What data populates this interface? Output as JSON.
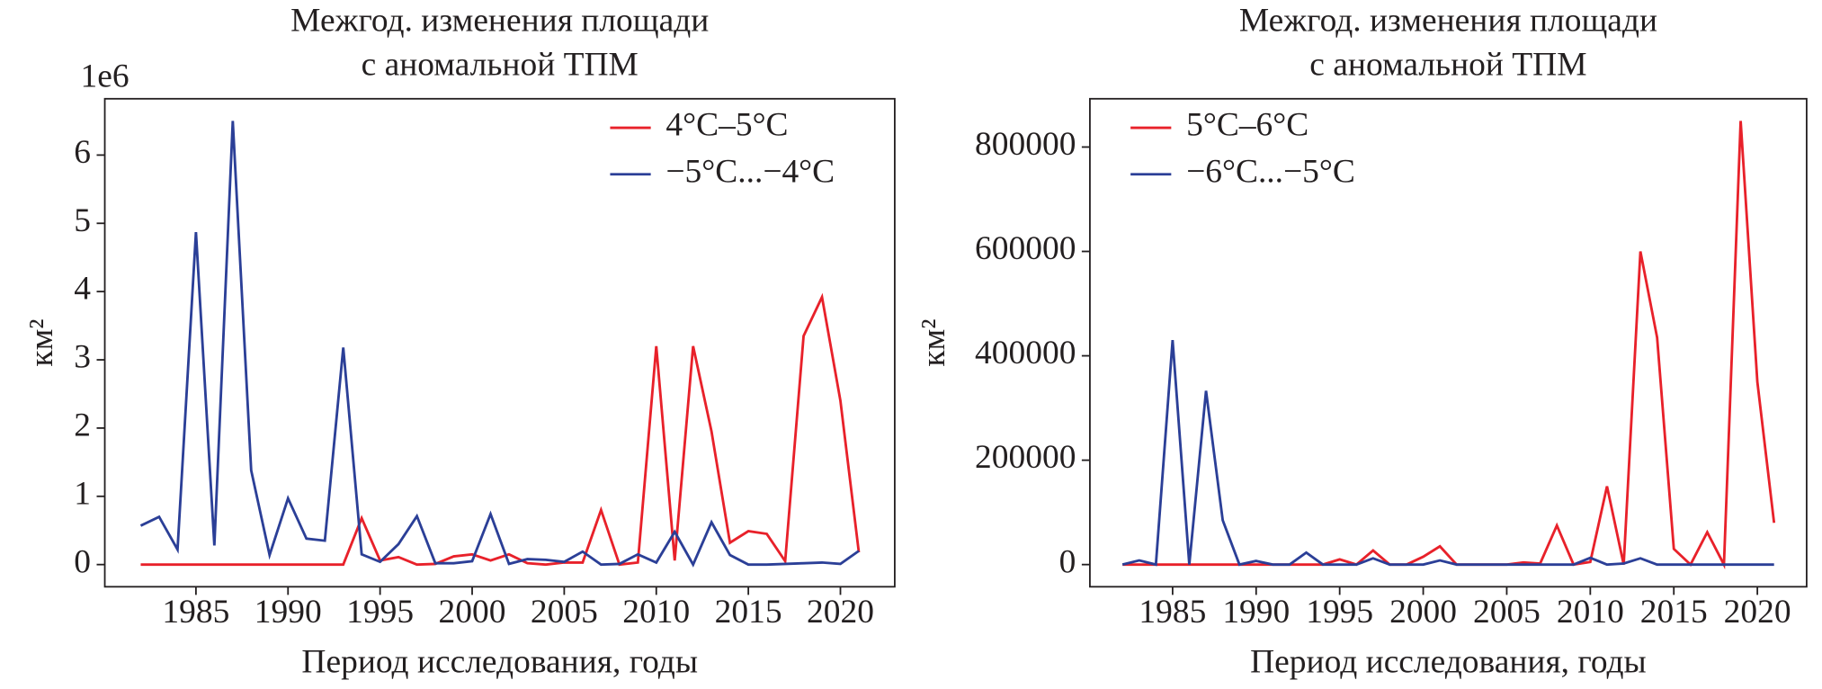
{
  "chart_data": [
    {
      "type": "line",
      "title": [
        "Межгод. изменения площади",
        "с аномальной ТПМ"
      ],
      "xlabel": "Период исследования, годы",
      "ylabel": "км²",
      "offset_text": "1e6",
      "x": [
        1982,
        1983,
        1984,
        1985,
        1986,
        1987,
        1988,
        1989,
        1990,
        1991,
        1992,
        1993,
        1994,
        1995,
        1996,
        1997,
        1998,
        1999,
        2000,
        2001,
        2002,
        2003,
        2004,
        2005,
        2006,
        2007,
        2008,
        2009,
        2010,
        2011,
        2012,
        2013,
        2014,
        2015,
        2016,
        2017,
        2018,
        2019,
        2020,
        2021
      ],
      "series": [
        {
          "name": "4°C–5°C",
          "color": "#e8212a",
          "values": [
            0,
            0,
            0,
            0,
            0,
            0,
            0,
            0,
            0,
            0,
            0,
            0,
            0.68,
            0.06,
            0.11,
            0,
            0.01,
            0.12,
            0.15,
            0.06,
            0.15,
            0.02,
            0,
            0.03,
            0.03,
            0.8,
            0,
            0.03,
            3.2,
            0.06,
            3.2,
            1.95,
            0.32,
            0.49,
            0.45,
            0.05,
            3.35,
            3.92,
            2.4,
            0.18
          ]
        },
        {
          "name": "−5°C...−4°C",
          "color": "#2b3f97",
          "values": [
            0.57,
            0.7,
            0.22,
            4.87,
            0.28,
            6.5,
            1.38,
            0.14,
            0.97,
            0.38,
            0.35,
            3.18,
            0.15,
            0.04,
            0.3,
            0.71,
            0.02,
            0.02,
            0.05,
            0.74,
            0.01,
            0.08,
            0.07,
            0.04,
            0.19,
            0,
            0.01,
            0.15,
            0.03,
            0.48,
            0,
            0.62,
            0.14,
            0,
            0,
            0.01,
            0.02,
            0.03,
            0.01,
            0.2
          ]
        }
      ],
      "xlim": [
        1980.05,
        2022.95
      ],
      "xticks": [
        1985,
        1990,
        1995,
        2000,
        2005,
        2010,
        2015,
        2020
      ],
      "ylim": [
        -0.325,
        6.825
      ],
      "yticks": [
        0,
        1,
        2,
        3,
        4,
        5,
        6
      ],
      "legend": "upper right"
    },
    {
      "type": "line",
      "title": [
        "Межгод. изменения площади",
        "с аномальной ТПМ"
      ],
      "xlabel": "Период исследования, годы",
      "ylabel": "км²",
      "x": [
        1982,
        1983,
        1984,
        1985,
        1986,
        1987,
        1988,
        1989,
        1990,
        1991,
        1992,
        1993,
        1994,
        1995,
        1996,
        1997,
        1998,
        1999,
        2000,
        2001,
        2002,
        2003,
        2004,
        2005,
        2006,
        2007,
        2008,
        2009,
        2010,
        2011,
        2012,
        2013,
        2014,
        2015,
        2016,
        2017,
        2018,
        2019,
        2020,
        2021
      ],
      "series": [
        {
          "name": "5°C–6°C",
          "color": "#e8212a",
          "values": [
            0,
            0,
            0,
            0,
            0,
            0,
            0,
            0,
            0,
            0,
            0,
            0,
            0,
            10000,
            0,
            27000,
            0,
            0,
            15000,
            35000,
            0,
            0,
            0,
            0,
            4000,
            2000,
            75000,
            0,
            5000,
            150000,
            0,
            600000,
            435000,
            30000,
            0,
            62000,
            0,
            850000,
            350000,
            80000
          ]
        },
        {
          "name": "−6°C...−5°C",
          "color": "#2b3f97",
          "values": [
            0,
            8000,
            0,
            430000,
            0,
            333000,
            85000,
            0,
            7000,
            0,
            0,
            23000,
            0,
            0,
            0,
            12000,
            0,
            0,
            0,
            8000,
            0,
            0,
            0,
            0,
            0,
            0,
            0,
            0,
            13000,
            0,
            2000,
            12000,
            0,
            0,
            0,
            0,
            0,
            0,
            0,
            0
          ]
        }
      ],
      "xlim": [
        1980.05,
        2022.95
      ],
      "xticks": [
        1985,
        1990,
        1995,
        2000,
        2005,
        2010,
        2015,
        2020
      ],
      "ylim": [
        -42500,
        892500
      ],
      "yticks": [
        0,
        200000,
        400000,
        600000,
        800000
      ],
      "legend": "upper left"
    }
  ]
}
